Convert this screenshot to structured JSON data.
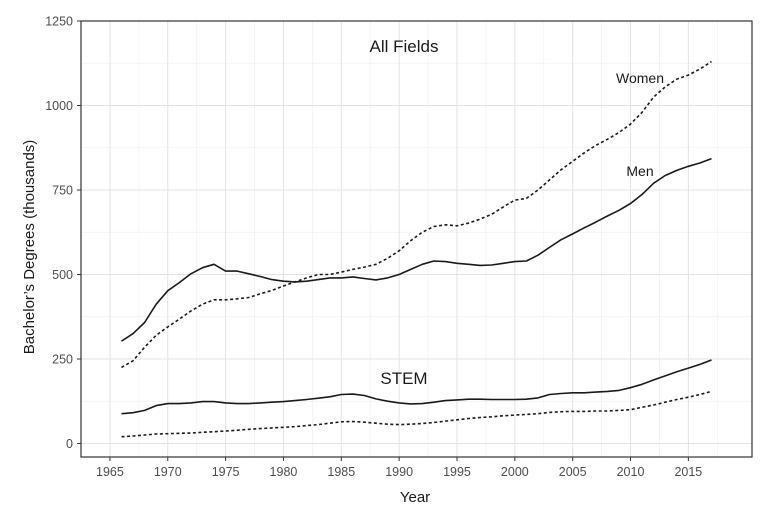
{
  "chart_data": {
    "type": "line",
    "title": "",
    "xlabel": "Year",
    "ylabel": "Bachelor’s Degrees (thousands)",
    "xlim": [
      1962.5,
      2020.5
    ],
    "ylim": [
      -40,
      1250
    ],
    "x_ticks": [
      1965,
      1970,
      1975,
      1980,
      1985,
      1990,
      1995,
      2000,
      2005,
      2010,
      2015
    ],
    "y_ticks": [
      0,
      250,
      500,
      750,
      1000,
      1250
    ],
    "grid": true,
    "legend": "none",
    "annotations": {
      "all_fields": "All Fields",
      "stem": "STEM",
      "women": "Women",
      "men": "Men"
    },
    "series": [
      {
        "group": "All Fields",
        "sex": "Men",
        "style": "solid",
        "color": "#1a1a1a",
        "x": [
          1966,
          1967,
          1968,
          1969,
          1970,
          1971,
          1972,
          1973,
          1974,
          1975,
          1976,
          1977,
          1978,
          1979,
          1980,
          1981,
          1982,
          1983,
          1984,
          1985,
          1986,
          1987,
          1988,
          1989,
          1990,
          1991,
          1992,
          1993,
          1994,
          1995,
          1996,
          1997,
          1998,
          1999,
          2000,
          2001,
          2002,
          2003,
          2004,
          2005,
          2006,
          2007,
          2008,
          2009,
          2010,
          2011,
          2012,
          2013,
          2014,
          2015,
          2016,
          2017
        ],
        "y": [
          303,
          325,
          358,
          412,
          452,
          476,
          502,
          520,
          530,
          510,
          510,
          502,
          494,
          485,
          480,
          478,
          480,
          485,
          490,
          490,
          493,
          488,
          484,
          490,
          500,
          515,
          530,
          540,
          538,
          533,
          530,
          527,
          528,
          533,
          538,
          540,
          557,
          580,
          603,
          620,
          638,
          655,
          673,
          690,
          710,
          737,
          770,
          793,
          808,
          820,
          830,
          843
        ]
      },
      {
        "group": "All Fields",
        "sex": "Women",
        "style": "dashed",
        "color": "#1a1a1a",
        "x": [
          1966,
          1967,
          1968,
          1969,
          1970,
          1971,
          1972,
          1973,
          1974,
          1975,
          1976,
          1977,
          1978,
          1979,
          1980,
          1981,
          1982,
          1983,
          1984,
          1985,
          1986,
          1987,
          1988,
          1989,
          1990,
          1991,
          1992,
          1993,
          1994,
          1995,
          1996,
          1997,
          1998,
          1999,
          2000,
          2001,
          2002,
          2003,
          2004,
          2005,
          2006,
          2007,
          2008,
          2009,
          2010,
          2011,
          2012,
          2013,
          2014,
          2015,
          2016,
          2017
        ],
        "y": [
          225,
          245,
          285,
          320,
          345,
          368,
          392,
          412,
          425,
          425,
          428,
          432,
          443,
          453,
          466,
          478,
          490,
          500,
          500,
          507,
          515,
          522,
          530,
          548,
          570,
          600,
          625,
          642,
          647,
          644,
          652,
          664,
          678,
          700,
          720,
          725,
          750,
          780,
          810,
          835,
          860,
          882,
          900,
          920,
          945,
          980,
          1025,
          1055,
          1078,
          1090,
          1108,
          1130
        ]
      },
      {
        "group": "STEM",
        "sex": "Men",
        "style": "solid",
        "color": "#1a1a1a",
        "x": [
          1966,
          1967,
          1968,
          1969,
          1970,
          1971,
          1972,
          1973,
          1974,
          1975,
          1976,
          1977,
          1978,
          1979,
          1980,
          1981,
          1982,
          1983,
          1984,
          1985,
          1986,
          1987,
          1988,
          1989,
          1990,
          1991,
          1992,
          1993,
          1994,
          1995,
          1996,
          1997,
          1998,
          1999,
          2000,
          2001,
          2002,
          2003,
          2004,
          2005,
          2006,
          2007,
          2008,
          2009,
          2010,
          2011,
          2012,
          2013,
          2014,
          2015,
          2016,
          2017
        ],
        "y": [
          88,
          91,
          98,
          112,
          118,
          118,
          120,
          124,
          124,
          120,
          118,
          118,
          120,
          122,
          124,
          127,
          130,
          134,
          138,
          145,
          146,
          142,
          132,
          125,
          120,
          117,
          118,
          122,
          127,
          129,
          131,
          131,
          130,
          130,
          130,
          131,
          135,
          145,
          148,
          150,
          150,
          152,
          154,
          157,
          165,
          175,
          188,
          200,
          212,
          223,
          234,
          247
        ]
      },
      {
        "group": "STEM",
        "sex": "Women",
        "style": "dashed",
        "color": "#1a1a1a",
        "x": [
          1966,
          1967,
          1968,
          1969,
          1970,
          1971,
          1972,
          1973,
          1974,
          1975,
          1976,
          1977,
          1978,
          1979,
          1980,
          1981,
          1982,
          1983,
          1984,
          1985,
          1986,
          1987,
          1988,
          1989,
          1990,
          1991,
          1992,
          1993,
          1994,
          1995,
          1996,
          1997,
          1998,
          1999,
          2000,
          2001,
          2002,
          2003,
          2004,
          2005,
          2006,
          2007,
          2008,
          2009,
          2010,
          2011,
          2012,
          2013,
          2014,
          2015,
          2016,
          2017
        ],
        "y": [
          20,
          22,
          25,
          28,
          29,
          30,
          31,
          33,
          35,
          37,
          39,
          42,
          44,
          46,
          48,
          50,
          53,
          56,
          60,
          64,
          65,
          63,
          60,
          57,
          56,
          57,
          59,
          62,
          66,
          70,
          74,
          77,
          79,
          82,
          84,
          86,
          88,
          92,
          94,
          95,
          95,
          96,
          96,
          98,
          100,
          107,
          114,
          122,
          130,
          137,
          145,
          154
        ]
      }
    ]
  }
}
